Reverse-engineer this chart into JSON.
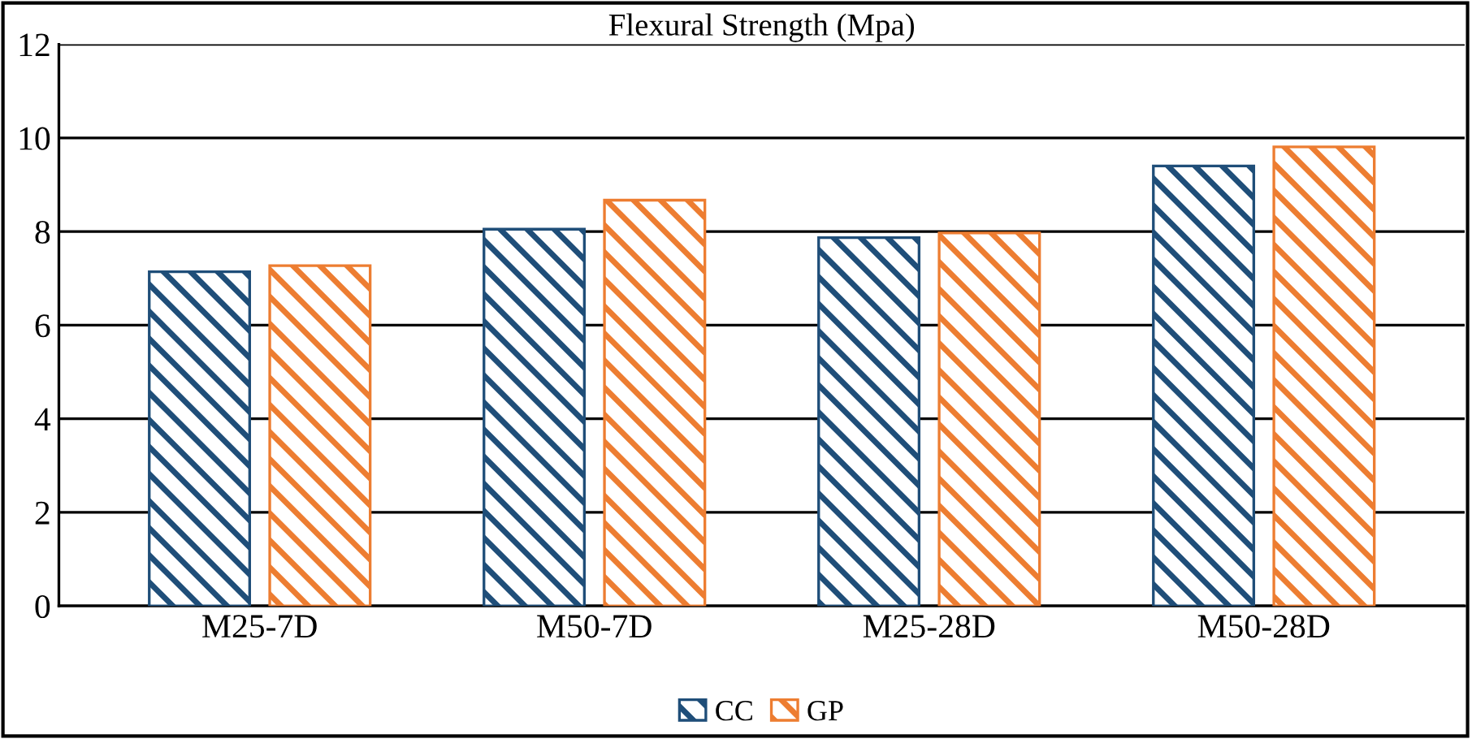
{
  "chart_data": {
    "type": "bar",
    "title": "Flexural Strength (Mpa)",
    "categories": [
      "M25-7D",
      "M50-7D",
      "M25-28D",
      "M50-28D"
    ],
    "series": [
      {
        "name": "CC",
        "color": "#1f4e79",
        "values": [
          7.14,
          8.05,
          7.87,
          9.4
        ]
      },
      {
        "name": "GP",
        "color": "#ed7d31",
        "values": [
          7.27,
          8.67,
          7.97,
          9.81
        ]
      }
    ],
    "ylim": [
      0,
      12
    ],
    "yticks": [
      0,
      2,
      4,
      6,
      8,
      10,
      12
    ],
    "grid": "y",
    "legend": "bottom"
  }
}
